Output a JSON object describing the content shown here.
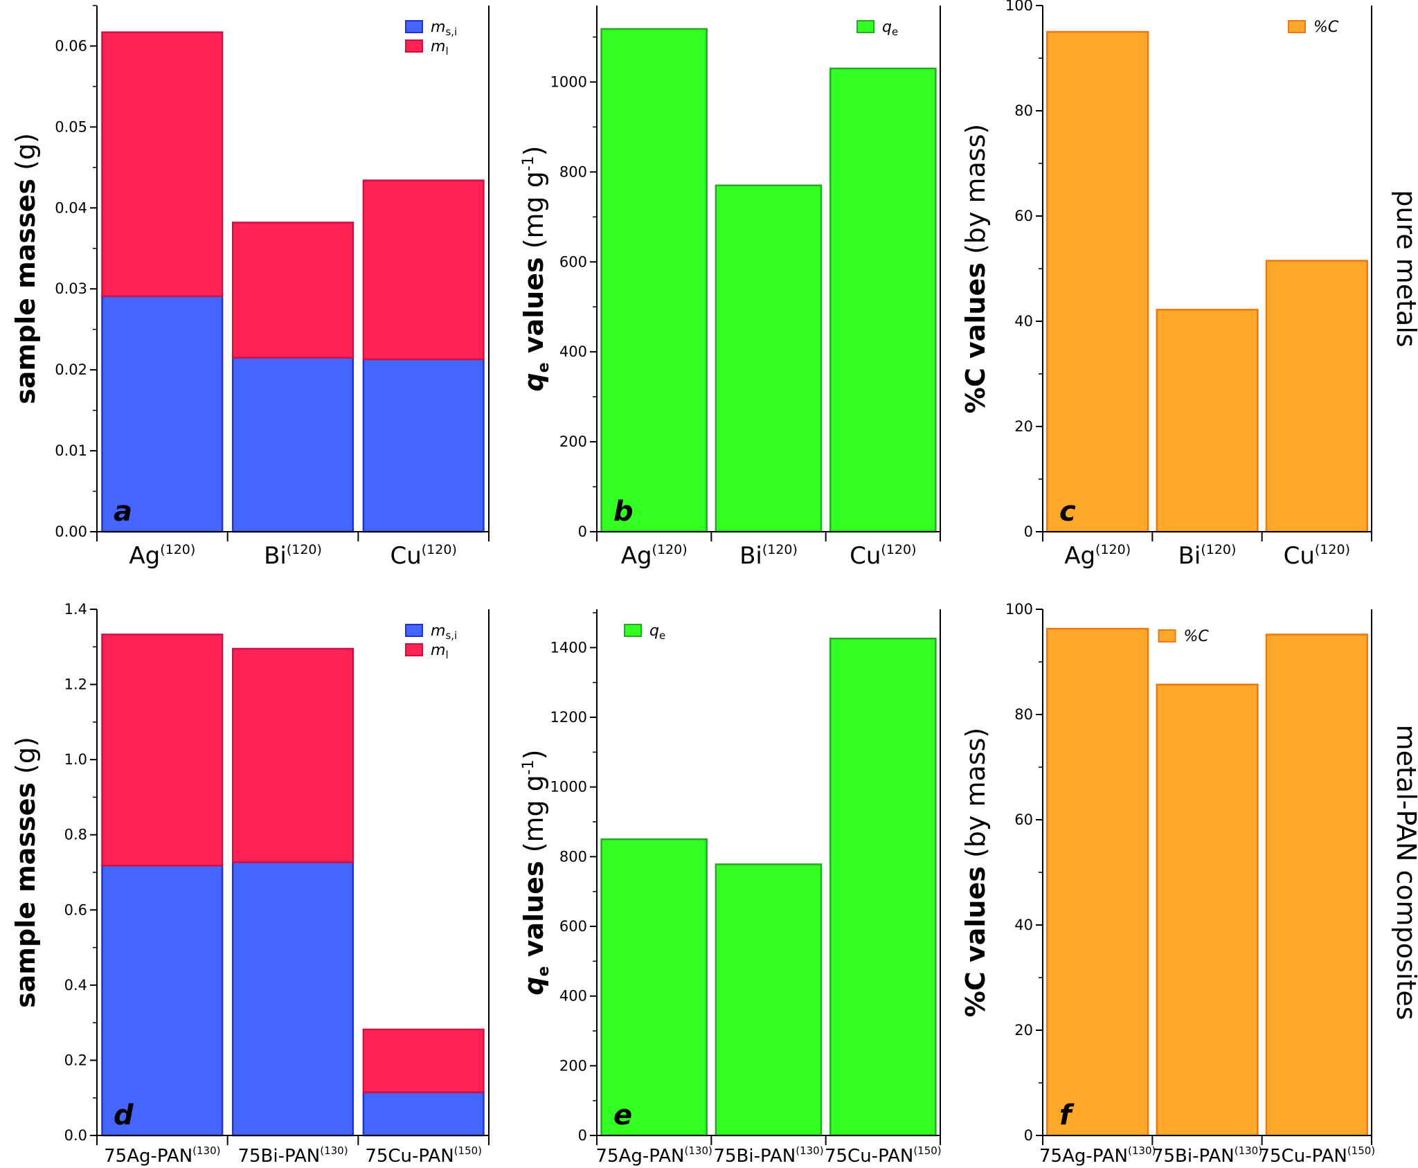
{
  "colors": {
    "blue": "#4466ff",
    "blue_edge": "#2233cc",
    "red": "#ff2255",
    "red_edge": "#cc1144",
    "green": "#33ff22",
    "green_edge": "#22aa22",
    "orange": "#ffa82a",
    "orange_edge": "#ee7711"
  },
  "row_labels": {
    "top": "pure metals",
    "bottom": "metal-PAN composites"
  },
  "chart_data": [
    {
      "id": "a",
      "type": "bar",
      "stacked": true,
      "panel_letter": "a",
      "ylabel": {
        "bold": "sample masses",
        "normal": " (g)"
      },
      "ylim": [
        0,
        0.065
      ],
      "yticks": [
        "0.00",
        "0.01",
        "0.02",
        "0.03",
        "0.04",
        "0.05",
        "0.06"
      ],
      "categories": [
        {
          "base": "Ag",
          "sup": "(120)"
        },
        {
          "base": "Bi",
          "sup": "(120)"
        },
        {
          "base": "Cu",
          "sup": "(120)"
        }
      ],
      "series": [
        {
          "name": "m",
          "sub": "s,i",
          "color": "blue",
          "values": [
            0.0291,
            0.0215,
            0.0213
          ]
        },
        {
          "name": "m",
          "sub": "l",
          "color": "red",
          "values": [
            0.0326,
            0.0167,
            0.0221
          ]
        }
      ],
      "legend_position": "top-right"
    },
    {
      "id": "b",
      "type": "bar",
      "panel_letter": "b",
      "ylabel": {
        "bold": "q",
        "bold_sub": "e",
        "bold_rest": " values",
        "normal": " (mg g",
        "normal_sup": "-1",
        "normal_end": ")"
      },
      "ylim": [
        0,
        1170
      ],
      "yticks": [
        "0",
        "200",
        "400",
        "600",
        "800",
        "1000"
      ],
      "categories": [
        {
          "base": "Ag",
          "sup": "(120)"
        },
        {
          "base": "Bi",
          "sup": "(120)"
        },
        {
          "base": "Cu",
          "sup": "(120)"
        }
      ],
      "series": [
        {
          "name": "q",
          "sub": "e",
          "color": "green",
          "values": [
            1118,
            770,
            1030
          ]
        }
      ],
      "legend_position": "top-right"
    },
    {
      "id": "c",
      "type": "bar",
      "panel_letter": "c",
      "ylabel": {
        "bold": "%C values",
        "normal": " (by mass)"
      },
      "ylim": [
        0,
        100
      ],
      "yticks": [
        "0",
        "20",
        "40",
        "60",
        "80",
        "100"
      ],
      "categories": [
        {
          "base": "Ag",
          "sup": "(120)"
        },
        {
          "base": "Bi",
          "sup": "(120)"
        },
        {
          "base": "Cu",
          "sup": "(120)"
        }
      ],
      "series": [
        {
          "name": "%C",
          "sub": "",
          "color": "orange",
          "values": [
            95,
            42.2,
            51.5
          ]
        }
      ],
      "legend_position": "top-right"
    },
    {
      "id": "d",
      "type": "bar",
      "stacked": true,
      "panel_letter": "d",
      "ylabel": {
        "bold": "sample masses",
        "normal": " (g)"
      },
      "ylim": [
        0,
        1.4
      ],
      "yticks": [
        "0.0",
        "0.2",
        "0.4",
        "0.6",
        "0.8",
        "1.0",
        "1.2",
        "1.4"
      ],
      "categories": [
        {
          "base": "75Ag-PAN",
          "sup": "(130)"
        },
        {
          "base": "75Bi-PAN",
          "sup": "(130)"
        },
        {
          "base": "75Cu-PAN",
          "sup": "(150)"
        }
      ],
      "series": [
        {
          "name": "m",
          "sub": "s,i",
          "color": "blue",
          "values": [
            0.718,
            0.727,
            0.115
          ]
        },
        {
          "name": "m",
          "sub": "l",
          "color": "red",
          "values": [
            0.615,
            0.568,
            0.167
          ]
        }
      ],
      "legend_position": "top-right"
    },
    {
      "id": "e",
      "type": "bar",
      "panel_letter": "e",
      "ylabel": {
        "bold": "q",
        "bold_sub": "e",
        "bold_rest": " values",
        "normal": " (mg g",
        "normal_sup": "-1",
        "normal_end": ")"
      },
      "ylim": [
        0,
        1510
      ],
      "yticks": [
        "0",
        "200",
        "400",
        "600",
        "800",
        "1000",
        "1200",
        "1400"
      ],
      "categories": [
        {
          "base": "75Ag-PAN",
          "sup": "(130)"
        },
        {
          "base": "75Bi-PAN",
          "sup": "(130)"
        },
        {
          "base": "75Cu-PAN",
          "sup": "(150)"
        }
      ],
      "series": [
        {
          "name": "q",
          "sub": "e",
          "color": "green",
          "values": [
            850,
            778,
            1426
          ]
        }
      ],
      "legend_position": "top-left"
    },
    {
      "id": "f",
      "type": "bar",
      "panel_letter": "f",
      "ylabel": {
        "bold": "%C values",
        "normal": " (by mass)"
      },
      "ylim": [
        0,
        100
      ],
      "yticks": [
        "0",
        "20",
        "40",
        "60",
        "80",
        "100"
      ],
      "categories": [
        {
          "base": "75Ag-PAN",
          "sup": "(130)"
        },
        {
          "base": "75Bi-PAN",
          "sup": "(130)"
        },
        {
          "base": "75Cu-PAN",
          "sup": "(150)"
        }
      ],
      "series": [
        {
          "name": "%C",
          "sub": "",
          "color": "orange",
          "values": [
            96.3,
            85.7,
            95.2
          ]
        }
      ],
      "legend_position": "top-center"
    }
  ]
}
